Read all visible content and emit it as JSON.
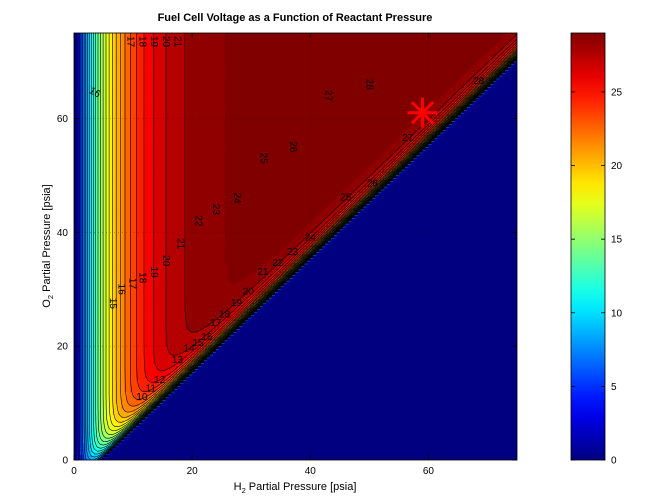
{
  "chart_data": {
    "type": "heatmap",
    "subtype": "filled-contour",
    "title": "Fuel Cell Voltage as a Function of Reactant Pressure",
    "xlabel": {
      "base": "H",
      "sub": "2",
      "rest": " Partial Pressure [psia]"
    },
    "ylabel": {
      "base": "O",
      "sub": "2",
      "rest": " Partial Pressure [psia]"
    },
    "xlim": [
      0,
      75
    ],
    "ylim": [
      0,
      75
    ],
    "x_ticks": [
      0,
      20,
      40,
      60
    ],
    "y_ticks": [
      0,
      20,
      40,
      60
    ],
    "grid": "dotted",
    "colormap": "jet",
    "colorbar": {
      "limits": [
        0,
        29
      ],
      "ticks": [
        0,
        5,
        10,
        15,
        20,
        25
      ]
    },
    "feasible_region": "O2 > H2 - 5",
    "infeasible_value": 0,
    "contour_levels": [
      1,
      2,
      3,
      4,
      5,
      6,
      7,
      8,
      9,
      10,
      11,
      12,
      13,
      14,
      15,
      16,
      17,
      18,
      19,
      20,
      21,
      22,
      23,
      24,
      25,
      26,
      27,
      28
    ],
    "contour_labels": [
      {
        "text": "17",
        "x": 9.5,
        "y": 73.5,
        "rot": 90
      },
      {
        "text": "18",
        "x": 11.5,
        "y": 73.5,
        "rot": 90
      },
      {
        "text": "19",
        "x": 13.5,
        "y": 73.5,
        "rot": 90
      },
      {
        "text": "20",
        "x": 15.5,
        "y": 73.5,
        "rot": 90
      },
      {
        "text": "21",
        "x": 17.5,
        "y": 73.5,
        "rot": 90
      },
      {
        "text": "28",
        "x": 50,
        "y": 66,
        "rot": 90
      },
      {
        "text": "27",
        "x": 43,
        "y": 64,
        "rot": 90
      },
      {
        "text": "26",
        "x": 37,
        "y": 55,
        "rot": 90
      },
      {
        "text": "25",
        "x": 32,
        "y": 53,
        "rot": 90
      },
      {
        "text": "24",
        "x": 27.5,
        "y": 46,
        "rot": 90
      },
      {
        "text": "23",
        "x": 24,
        "y": 44,
        "rot": 90
      },
      {
        "text": "22",
        "x": 21,
        "y": 42,
        "rot": 90
      },
      {
        "text": "21",
        "x": 18,
        "y": 38,
        "rot": 90
      },
      {
        "text": "20",
        "x": 15.5,
        "y": 35,
        "rot": 90
      },
      {
        "text": "19",
        "x": 13.5,
        "y": 33,
        "rot": 90
      },
      {
        "text": "18",
        "x": 11.5,
        "y": 32,
        "rot": 90
      },
      {
        "text": "17",
        "x": 9.8,
        "y": 31,
        "rot": 90
      },
      {
        "text": "16",
        "x": 8,
        "y": 30,
        "rot": 90
      },
      {
        "text": "15",
        "x": 6.5,
        "y": 27.5,
        "rot": 90
      },
      {
        "text": "16",
        "x": 3.5,
        "y": 64.5,
        "rot": 30
      },
      {
        "text": "27",
        "x": 56.5,
        "y": 56.5,
        "rot": 0
      },
      {
        "text": "28",
        "x": 68.5,
        "y": 66.5,
        "rot": 0
      },
      {
        "text": "26",
        "x": 50.5,
        "y": 48.5,
        "rot": 0
      },
      {
        "text": "25",
        "x": 46,
        "y": 46,
        "rot": 0
      },
      {
        "text": "24",
        "x": 40,
        "y": 39,
        "rot": 0
      },
      {
        "text": "23",
        "x": 37,
        "y": 36.5,
        "rot": 0
      },
      {
        "text": "22",
        "x": 34.5,
        "y": 34.5,
        "rot": 0
      },
      {
        "text": "21",
        "x": 32,
        "y": 33,
        "rot": 0
      },
      {
        "text": "20",
        "x": 29.5,
        "y": 29.5,
        "rot": 0
      },
      {
        "text": "19",
        "x": 27.5,
        "y": 27.5,
        "rot": 0
      },
      {
        "text": "18",
        "x": 25.5,
        "y": 25.5,
        "rot": 0
      },
      {
        "text": "17",
        "x": 24,
        "y": 24,
        "rot": 0
      },
      {
        "text": "16",
        "x": 22.5,
        "y": 21.5,
        "rot": 0
      },
      {
        "text": "15",
        "x": 21,
        "y": 20.5,
        "rot": 0
      },
      {
        "text": "14",
        "x": 19.5,
        "y": 19.5,
        "rot": 0
      },
      {
        "text": "13",
        "x": 17.5,
        "y": 17.5,
        "rot": 0
      },
      {
        "text": "12",
        "x": 14.5,
        "y": 14,
        "rot": 0
      },
      {
        "text": "11",
        "x": 13,
        "y": 12.5,
        "rot": 0
      },
      {
        "text": "10",
        "x": 11.5,
        "y": 11,
        "rot": 0
      }
    ],
    "marker": {
      "x": 59,
      "y": 61,
      "symbol": "asterisk",
      "color": "#ff0000"
    }
  }
}
